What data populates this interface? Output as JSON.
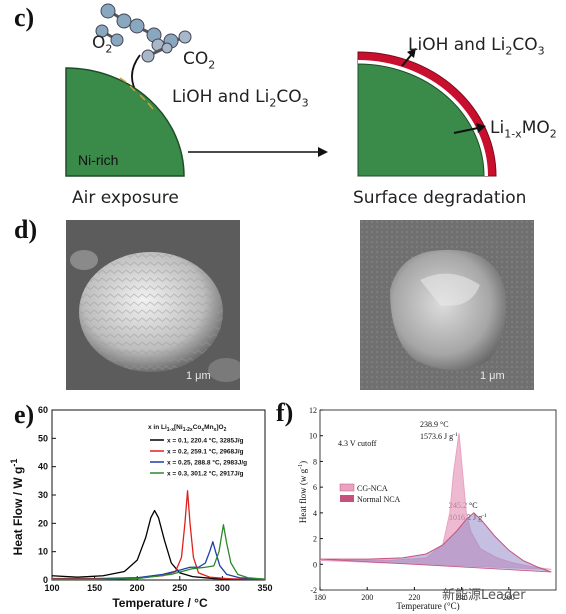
{
  "panel_c": {
    "label": "c)",
    "o2": "O",
    "o2_sub": "2",
    "co2": "CO",
    "co2_sub": "2",
    "product_left_pre": "LiOH and Li",
    "product_left_sub": "2",
    "product_left_post": "CO",
    "product_left_sub2": "3",
    "core_label": "Ni-rich",
    "caption_left": "Air exposure",
    "product_right_pre": "LiOH and Li",
    "product_right_sub": "2",
    "product_right_post": "CO",
    "product_right_sub2": "3",
    "li_pre": "Li",
    "li_sub": "1-x",
    "li_post": "MO",
    "li_sub2": "2",
    "caption_right": "Surface degradation",
    "colors": {
      "core": "#3a8a4a",
      "shell": "#c8102e"
    }
  },
  "panel_d": {
    "label": "d)",
    "scale_left": "1 μm",
    "scale_right": "1 μm"
  },
  "panel_e": {
    "label": "e)",
    "ylabel_pre": "Heat Flow  /  W g",
    "ylabel_sup": "-1",
    "xlabel": "Temperature   /   °C",
    "legend_title_pre": "x in Li",
    "legend_title_mid": "[Ni",
    "legend_title_mid2": "Co",
    "legend_title_mid3": "Mn",
    "legend_title_end": "]O",
    "legend": [
      {
        "name": "x = 0.1,   220.4 °C, 3285J/g",
        "color": "#000000"
      },
      {
        "name": "x = 0.2,   259.1 °C, 2968J/g",
        "color": "#e0201c"
      },
      {
        "name": "x = 0.25, 288.8 °C, 2983J/g",
        "color": "#1f3ea8"
      },
      {
        "name": "x = 0.3,   301.2 °C, 2917J/g",
        "color": "#2a8a2a"
      }
    ]
  },
  "panel_f": {
    "label": "f)",
    "ylabel_pre": "Heat flow (w g",
    "ylabel_sup": "-1",
    "ylabel_post": ")",
    "xlabel": "Temperature (°C)",
    "cutoff": "4.3 V cutoff",
    "peak1_temp": "238.9 °C",
    "peak1_energy_pre": "1573.6 J g",
    "peak1_energy_sup": "-1",
    "peak2_temp": "245.2 °C",
    "peak2_energy_pre": "1016.2 J g",
    "peak2_energy_sup": "-1",
    "legend": [
      {
        "name": "CG-NCA",
        "color": "#e8a3c2"
      },
      {
        "name": "Normal NCA",
        "color": "#c8507e"
      }
    ]
  },
  "watermark": "新能源Leader",
  "chart_data": [
    {
      "type": "line",
      "title": "",
      "xlabel": "Temperature   /   °C",
      "ylabel": "Heat Flow  /  W g-1",
      "xlim": [
        100,
        350
      ],
      "ylim": [
        0,
        60
      ],
      "xticks": [
        100,
        150,
        200,
        250,
        300,
        350
      ],
      "yticks": [
        0,
        10,
        20,
        30,
        40,
        50,
        60
      ],
      "legend_title": "x in Li1-x[Ni1-2xCoxMnx]O2",
      "legend_placement": "top-right",
      "series": [
        {
          "name": "x = 0.1,   220.4 °C, 3285J/g",
          "color": "#000000",
          "x": [
            100,
            130,
            160,
            185,
            200,
            210,
            216,
            220.4,
            225,
            232,
            240,
            250,
            265,
            290,
            320,
            350
          ],
          "y": [
            1.5,
            1.0,
            1.5,
            3,
            7,
            15,
            22,
            24.5,
            22,
            14,
            6,
            2.5,
            1.2,
            0.5,
            0.3,
            0.3
          ]
        },
        {
          "name": "x = 0.2,   259.1 °C, 2968J/g",
          "color": "#e0201c",
          "x": [
            100,
            150,
            200,
            230,
            245,
            252,
            256,
            259.1,
            262,
            266,
            272,
            285,
            310,
            350
          ],
          "y": [
            0.5,
            0.5,
            0.8,
            1.5,
            3,
            8,
            20,
            31.5,
            20,
            8,
            2.5,
            1,
            0.4,
            0.2
          ]
        },
        {
          "name": "x = 0.25, 288.8 °C, 2983J/g",
          "color": "#1f3ea8",
          "x": [
            100,
            150,
            200,
            230,
            250,
            262,
            272,
            280,
            285,
            288.8,
            292,
            297,
            305,
            320,
            350
          ],
          "y": [
            0.3,
            0.3,
            0.8,
            2,
            3.5,
            4.5,
            4.5,
            6,
            10,
            13.5,
            10,
            5,
            2,
            0.8,
            0.3
          ]
        },
        {
          "name": "x = 0.3,   301.2 °C, 2917J/g",
          "color": "#2a8a2a",
          "x": [
            100,
            150,
            200,
            240,
            265,
            280,
            290,
            296,
            301.2,
            305,
            310,
            318,
            330,
            350
          ],
          "y": [
            0.2,
            0.2,
            0.5,
            2,
            4,
            4.5,
            5,
            10,
            19.5,
            13,
            6,
            2,
            0.8,
            0.3
          ]
        }
      ]
    },
    {
      "type": "area",
      "title": "",
      "xlabel": "Temperature (°C)",
      "ylabel": "Heat flow (w g-1)",
      "xlim": [
        180,
        280
      ],
      "ylim": [
        -2,
        12
      ],
      "xticks": [
        180,
        200,
        220,
        240,
        260
      ],
      "yticks": [
        -2,
        0,
        2,
        4,
        6,
        8,
        10,
        12
      ],
      "legend_placement": "middle-left",
      "series": [
        {
          "name": "CG-NCA",
          "color": "#e8a3c2",
          "x": [
            180,
            210,
            225,
            232,
            235,
            236.5,
            238.9,
            240.5,
            242,
            244,
            248,
            255,
            262,
            270,
            278
          ],
          "y": [
            0.3,
            0.3,
            0.5,
            1.5,
            4,
            7,
            10.2,
            7,
            4,
            2.5,
            1.2,
            0.5,
            0.1,
            -0.2,
            -0.4
          ]
        },
        {
          "name": "Normal NCA",
          "color": "#c8507e",
          "x": [
            180,
            200,
            215,
            225,
            232,
            238,
            242,
            245.2,
            249,
            254,
            260,
            266,
            272,
            278
          ],
          "y": [
            0.4,
            0.4,
            0.5,
            0.8,
            1.5,
            2.6,
            3.5,
            4.0,
            3.3,
            2.2,
            1.1,
            0.3,
            -0.2,
            -0.6
          ]
        }
      ]
    }
  ]
}
